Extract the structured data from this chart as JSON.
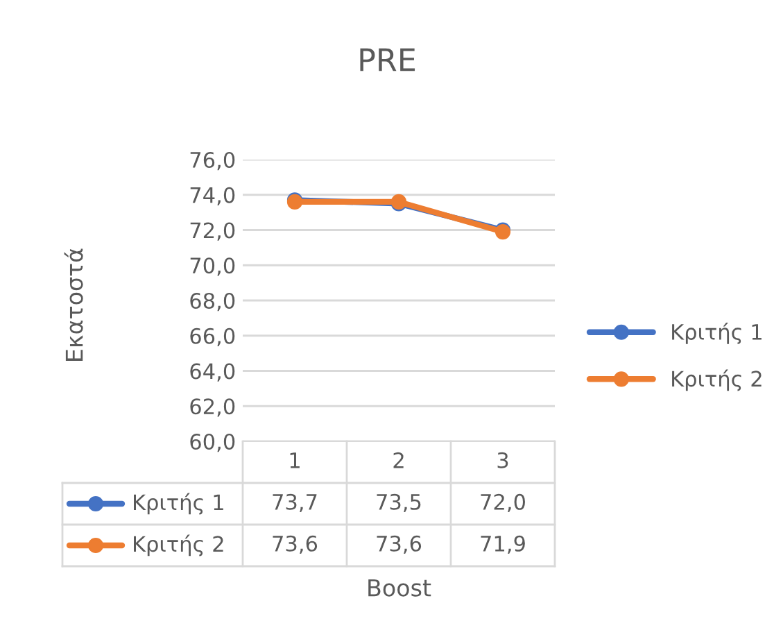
{
  "chart_data": {
    "type": "line",
    "title": "PRE",
    "xlabel": "Boost",
    "ylabel": "Εκατοστά",
    "categories": [
      "1",
      "2",
      "3"
    ],
    "series": [
      {
        "name": "Κριτής 1",
        "color": "#4472c4",
        "values": [
          73.7,
          73.5,
          72.0
        ],
        "value_labels": [
          "73,7",
          "73,5",
          "72,0"
        ]
      },
      {
        "name": "Κριτής 2",
        "color": "#ed7d31",
        "values": [
          73.6,
          73.6,
          71.9
        ],
        "value_labels": [
          "73,6",
          "73,6",
          "71,9"
        ]
      }
    ],
    "ylim": [
      60,
      76
    ],
    "yticks": [
      {
        "value": 60,
        "label": "60,0"
      },
      {
        "value": 62,
        "label": "62,0"
      },
      {
        "value": 64,
        "label": "64,0"
      },
      {
        "value": 66,
        "label": "66,0"
      },
      {
        "value": 68,
        "label": "68,0"
      },
      {
        "value": 70,
        "label": "70,0"
      },
      {
        "value": 72,
        "label": "72,0"
      },
      {
        "value": 74,
        "label": "74,0"
      },
      {
        "value": 76,
        "label": "76,0"
      }
    ],
    "grid": "y",
    "legend": "right",
    "marker": "circle",
    "line_style": "solid"
  }
}
